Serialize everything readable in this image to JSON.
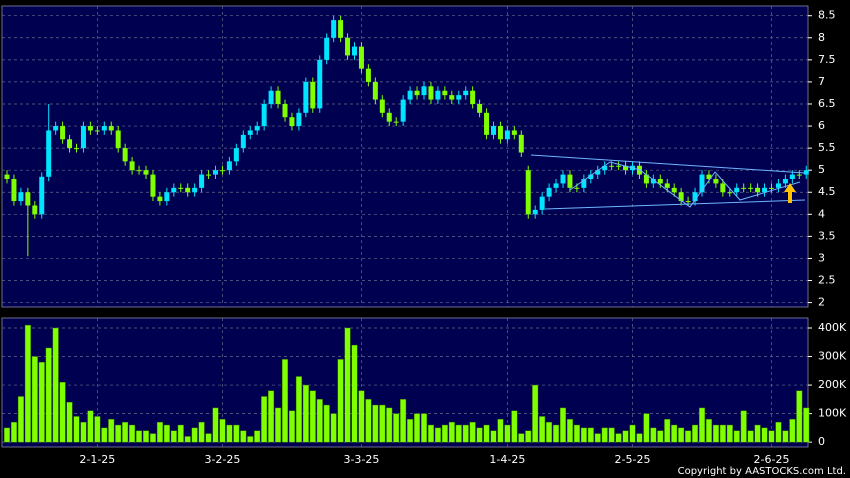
{
  "chart_data": {
    "type": "candlestick",
    "categories": [
      null,
      null,
      null,
      null,
      null,
      null,
      null,
      null,
      null,
      null,
      null,
      null,
      null,
      "2-1-25",
      null,
      null,
      null,
      null,
      null,
      null,
      null,
      null,
      null,
      null,
      null,
      null,
      null,
      null,
      null,
      null,
      null,
      "3-2-25",
      null,
      null,
      null,
      null,
      null,
      null,
      null,
      null,
      null,
      null,
      null,
      null,
      null,
      null,
      null,
      null,
      null,
      null,
      null,
      "3-3-25",
      null,
      null,
      null,
      null,
      null,
      null,
      null,
      null,
      null,
      null,
      null,
      null,
      null,
      null,
      null,
      null,
      null,
      null,
      null,
      null,
      "1-4-25",
      null,
      null,
      null,
      null,
      null,
      null,
      null,
      null,
      null,
      null,
      null,
      null,
      null,
      null,
      null,
      null,
      null,
      "2-5-25",
      null,
      null,
      null,
      null,
      null,
      null,
      null,
      null,
      null,
      null,
      null,
      null,
      null,
      null,
      null,
      null,
      null,
      null,
      null,
      "2-6-25",
      null,
      null,
      null,
      null,
      null
    ],
    "open": [
      4.9,
      4.8,
      4.3,
      4.5,
      4.2,
      4.0,
      4.85,
      5.9,
      6.0,
      5.7,
      5.5,
      5.5,
      6.0,
      5.9,
      5.9,
      6.0,
      5.9,
      5.5,
      5.2,
      5.0,
      5.0,
      4.9,
      4.4,
      4.3,
      4.5,
      4.6,
      4.6,
      4.5,
      4.6,
      4.9,
      4.9,
      5.0,
      5.0,
      5.2,
      5.5,
      5.8,
      5.9,
      6.0,
      6.5,
      6.8,
      6.5,
      6.2,
      6.0,
      6.3,
      7.0,
      6.4,
      7.5,
      8.0,
      8.4,
      8.0,
      7.6,
      7.8,
      7.3,
      7.0,
      6.6,
      6.3,
      6.1,
      6.1,
      6.6,
      6.8,
      6.7,
      6.9,
      6.6,
      6.8,
      6.7,
      6.6,
      6.7,
      6.8,
      6.5,
      6.3,
      5.8,
      6.0,
      5.7,
      5.9,
      5.8,
      5.0,
      4.0,
      4.1,
      4.4,
      4.6,
      4.7,
      4.9,
      4.6,
      4.6,
      4.8,
      4.9,
      5.0,
      5.1,
      5.1,
      5.1,
      5.0,
      5.1,
      4.9,
      4.7,
      4.8,
      4.7,
      4.6,
      4.5,
      4.3,
      4.3,
      4.5,
      4.9,
      4.8,
      4.7,
      4.5,
      4.5,
      4.6,
      4.6,
      4.6,
      4.5,
      4.6,
      4.6,
      4.7,
      4.8,
      4.9,
      4.9
    ],
    "high": [
      5.0,
      4.9,
      4.6,
      4.6,
      4.3,
      4.95,
      6.5,
      6.1,
      6.1,
      5.8,
      5.6,
      6.1,
      6.1,
      6.0,
      6.1,
      6.1,
      6.0,
      5.6,
      5.3,
      5.1,
      5.1,
      5.0,
      4.5,
      4.6,
      4.7,
      4.7,
      4.7,
      4.7,
      5.0,
      5.0,
      5.1,
      5.1,
      5.3,
      5.6,
      5.9,
      6.0,
      6.1,
      6.6,
      6.9,
      6.9,
      6.6,
      6.3,
      6.4,
      7.1,
      7.1,
      7.6,
      8.1,
      8.5,
      8.5,
      8.1,
      7.9,
      7.9,
      7.4,
      7.1,
      6.7,
      6.4,
      6.2,
      6.7,
      6.9,
      6.9,
      7.0,
      7.0,
      6.9,
      6.9,
      6.8,
      6.8,
      6.9,
      6.9,
      6.6,
      6.4,
      6.1,
      6.1,
      6.0,
      6.0,
      5.9,
      5.1,
      4.2,
      4.5,
      4.7,
      4.8,
      5.0,
      5.0,
      4.7,
      4.9,
      5.0,
      5.1,
      5.2,
      5.2,
      5.2,
      5.2,
      5.2,
      5.2,
      5.0,
      4.9,
      4.9,
      4.8,
      4.7,
      4.6,
      4.4,
      4.6,
      5.0,
      5.0,
      4.9,
      4.8,
      4.6,
      4.7,
      4.7,
      4.7,
      4.7,
      4.7,
      4.7,
      4.8,
      4.9,
      5.0,
      5.0,
      5.1
    ],
    "low": [
      4.7,
      4.2,
      4.2,
      3.05,
      3.9,
      3.9,
      4.75,
      5.8,
      5.6,
      5.4,
      5.4,
      5.4,
      5.8,
      5.8,
      5.8,
      5.8,
      5.4,
      5.1,
      4.9,
      4.9,
      4.8,
      4.3,
      4.2,
      4.2,
      4.4,
      4.5,
      4.4,
      4.4,
      4.5,
      4.8,
      4.8,
      4.9,
      4.9,
      5.1,
      5.4,
      5.7,
      5.8,
      5.9,
      6.4,
      6.4,
      6.1,
      5.9,
      5.9,
      6.2,
      6.3,
      6.3,
      7.4,
      7.9,
      7.9,
      7.5,
      7.5,
      7.2,
      6.9,
      6.5,
      6.2,
      6.0,
      6.0,
      6.0,
      6.5,
      6.6,
      6.6,
      6.5,
      6.5,
      6.6,
      6.5,
      6.5,
      6.6,
      6.4,
      6.2,
      5.7,
      5.7,
      5.6,
      5.6,
      5.7,
      5.3,
      3.9,
      3.9,
      4.0,
      4.3,
      4.5,
      4.6,
      4.5,
      4.5,
      4.5,
      4.7,
      4.8,
      4.9,
      5.0,
      5.0,
      4.9,
      4.9,
      4.8,
      4.6,
      4.6,
      4.6,
      4.5,
      4.4,
      4.2,
      4.2,
      4.2,
      4.4,
      4.7,
      4.6,
      4.4,
      4.4,
      4.4,
      4.5,
      4.5,
      4.4,
      4.4,
      4.5,
      4.5,
      4.6,
      4.7,
      4.8,
      4.8
    ],
    "close": [
      4.8,
      4.3,
      4.5,
      4.2,
      4.0,
      4.85,
      5.9,
      6.0,
      5.7,
      5.5,
      5.5,
      6.0,
      5.9,
      5.9,
      6.0,
      5.9,
      5.5,
      5.2,
      5.0,
      5.0,
      4.9,
      4.4,
      4.3,
      4.5,
      4.6,
      4.6,
      4.5,
      4.6,
      4.9,
      4.9,
      5.0,
      5.0,
      5.2,
      5.5,
      5.8,
      5.9,
      6.0,
      6.5,
      6.8,
      6.5,
      6.2,
      6.0,
      6.3,
      7.0,
      6.4,
      7.5,
      8.0,
      8.4,
      8.0,
      7.6,
      7.8,
      7.3,
      7.0,
      6.6,
      6.3,
      6.1,
      6.1,
      6.6,
      6.8,
      6.7,
      6.9,
      6.6,
      6.8,
      6.7,
      6.6,
      6.7,
      6.8,
      6.5,
      6.3,
      5.8,
      6.0,
      5.7,
      5.9,
      5.8,
      5.4,
      4.0,
      4.1,
      4.4,
      4.6,
      4.7,
      4.9,
      4.6,
      4.6,
      4.8,
      4.9,
      5.0,
      5.1,
      5.1,
      5.1,
      5.0,
      5.1,
      4.9,
      4.7,
      4.8,
      4.7,
      4.6,
      4.5,
      4.3,
      4.3,
      4.5,
      4.9,
      4.8,
      4.7,
      4.5,
      4.5,
      4.6,
      4.6,
      4.6,
      4.5,
      4.6,
      4.6,
      4.7,
      4.8,
      4.9,
      4.9,
      5.0
    ],
    "up_color": "#00e5ff",
    "down_color": "#80ff00",
    "ylim": [
      1.9,
      8.72
    ],
    "yticks": [
      2,
      2.5,
      3,
      3.5,
      4,
      4.5,
      5,
      5.5,
      6,
      6.5,
      7,
      7.5,
      8,
      8.5
    ],
    "grid": true,
    "volume": {
      "values": [
        50000,
        70000,
        160000,
        410000,
        300000,
        280000,
        330000,
        400000,
        210000,
        140000,
        90000,
        70000,
        110000,
        90000,
        50000,
        80000,
        60000,
        70000,
        60000,
        40000,
        40000,
        30000,
        70000,
        60000,
        40000,
        60000,
        20000,
        50000,
        70000,
        30000,
        120000,
        80000,
        60000,
        60000,
        40000,
        20000,
        40000,
        160000,
        180000,
        120000,
        290000,
        110000,
        230000,
        200000,
        180000,
        150000,
        130000,
        100000,
        290000,
        400000,
        340000,
        180000,
        150000,
        130000,
        130000,
        120000,
        100000,
        150000,
        80000,
        100000,
        100000,
        60000,
        50000,
        60000,
        70000,
        60000,
        60000,
        70000,
        50000,
        60000,
        40000,
        80000,
        60000,
        110000,
        30000,
        40000,
        200000,
        90000,
        70000,
        60000,
        120000,
        80000,
        60000,
        50000,
        50000,
        30000,
        50000,
        50000,
        30000,
        40000,
        60000,
        30000,
        100000,
        50000,
        40000,
        80000,
        60000,
        50000,
        40000,
        60000,
        120000,
        80000,
        60000,
        60000,
        60000,
        40000,
        110000,
        40000,
        60000,
        50000,
        40000,
        70000,
        40000,
        80000,
        180000,
        120000
      ],
      "color": "#80ff00",
      "ylim": [
        -17000,
        435000
      ],
      "yticks": [
        0,
        {
          "value": 100000,
          "label": "100K"
        },
        {
          "value": 200000,
          "label": "200K"
        },
        {
          "value": 300000,
          "label": "300K"
        },
        {
          "value": 400000,
          "label": "400K"
        }
      ]
    },
    "copyright": "Copyright by AASTOCKS.com Ltd."
  }
}
